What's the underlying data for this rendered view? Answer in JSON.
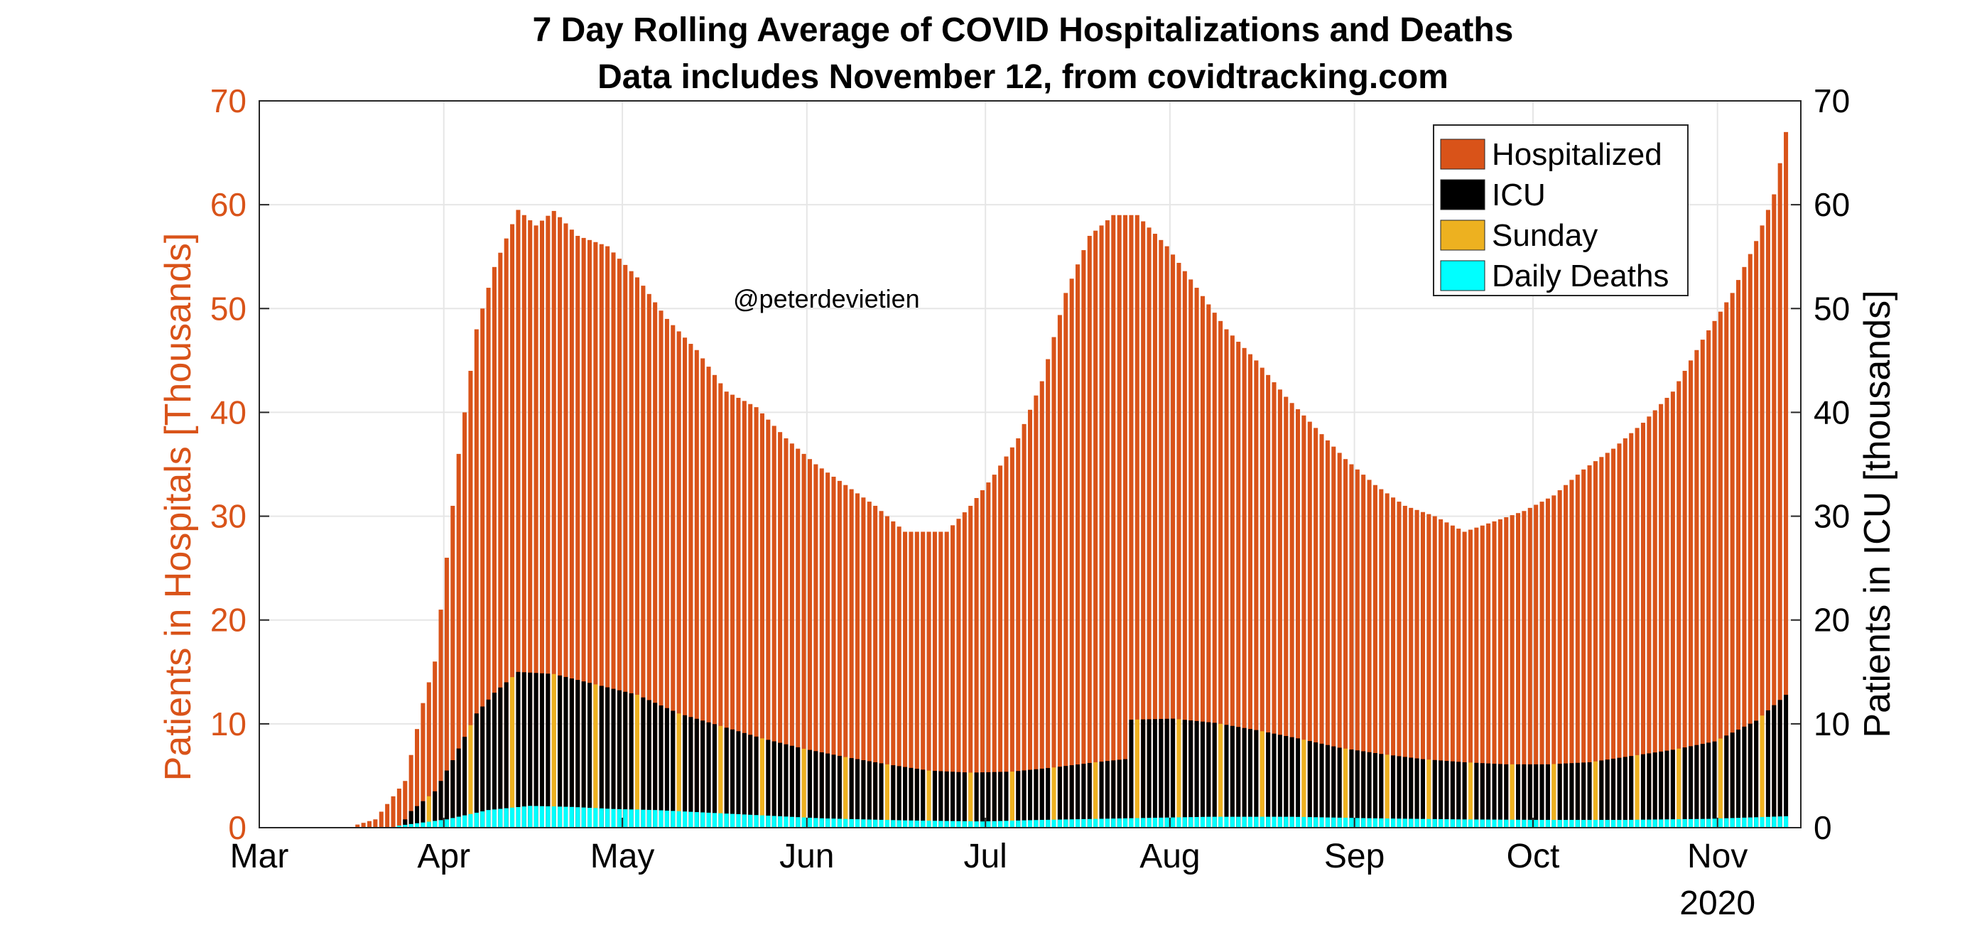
{
  "colors": {
    "hospitalized": "#D95319",
    "icu": "#000000",
    "sunday": "#EDB120",
    "deaths": "#00FFFF",
    "left_axis": "#D95319",
    "grid": "#e6e6e6"
  },
  "watermark": "@peterdevietien",
  "chart_data": {
    "type": "bar",
    "title": "7 Day Rolling Average of COVID Hospitalizations and Deaths",
    "subtitle": "Data includes November 12, from covidtracking.com",
    "ylabel": "Patients in Hospitals [Thousands]",
    "ylabel_right": "Patients in ICU [thousands]",
    "ylim": [
      0,
      70
    ],
    "ylim_right": [
      0,
      70
    ],
    "yticks": [
      "0",
      "10",
      "20",
      "30",
      "40",
      "50",
      "60",
      "70"
    ],
    "yticks_right": [
      "0",
      "10",
      "20",
      "30",
      "40",
      "50",
      "60",
      "70"
    ],
    "x_start": "2020-03-01",
    "x_end": "2020-11-15",
    "xticks": [
      {
        "date": "2020-03-01",
        "label": "Mar"
      },
      {
        "date": "2020-04-01",
        "label": "Apr"
      },
      {
        "date": "2020-05-01",
        "label": "May"
      },
      {
        "date": "2020-06-01",
        "label": "Jun"
      },
      {
        "date": "2020-07-01",
        "label": "Jul"
      },
      {
        "date": "2020-08-01",
        "label": "Aug"
      },
      {
        "date": "2020-09-01",
        "label": "Sep"
      },
      {
        "date": "2020-10-01",
        "label": "Oct"
      },
      {
        "date": "2020-11-01",
        "label": "Nov"
      }
    ],
    "year_label": "2020",
    "grid": true,
    "legend": {
      "position": "top-right",
      "entries": [
        "Hospitalized",
        "ICU",
        "Sunday",
        "Daily Deaths"
      ]
    },
    "series": [
      {
        "name": "Hospitalized",
        "keypoints": [
          [
            "2020-03-17",
            0.3
          ],
          [
            "2020-03-20",
            0.8
          ],
          [
            "2020-03-25",
            4.5
          ],
          [
            "2020-03-28",
            12
          ],
          [
            "2020-03-30",
            16
          ],
          [
            "2020-04-01",
            26
          ],
          [
            "2020-04-03",
            36
          ],
          [
            "2020-04-06",
            48
          ],
          [
            "2020-04-09",
            54
          ],
          [
            "2020-04-13",
            59.5
          ],
          [
            "2020-04-16",
            58
          ],
          [
            "2020-04-19",
            59.4
          ],
          [
            "2020-04-23",
            57
          ],
          [
            "2020-04-28",
            56
          ],
          [
            "2020-05-03",
            53
          ],
          [
            "2020-05-08",
            49
          ],
          [
            "2020-05-13",
            46
          ],
          [
            "2020-05-18",
            42
          ],
          [
            "2020-05-23",
            40.5
          ],
          [
            "2020-05-28",
            37.5
          ],
          [
            "2020-06-02",
            35
          ],
          [
            "2020-06-07",
            33
          ],
          [
            "2020-06-12",
            31
          ],
          [
            "2020-06-17",
            28.5
          ],
          [
            "2020-06-24",
            28.5
          ],
          [
            "2020-06-28",
            31
          ],
          [
            "2020-07-02",
            34
          ],
          [
            "2020-07-06",
            37.5
          ],
          [
            "2020-07-10",
            43
          ],
          [
            "2020-07-14",
            51.5
          ],
          [
            "2020-07-18",
            57
          ],
          [
            "2020-07-22",
            59
          ],
          [
            "2020-07-26",
            59
          ],
          [
            "2020-07-31",
            56
          ],
          [
            "2020-08-05",
            52
          ],
          [
            "2020-08-10",
            48
          ],
          [
            "2020-08-15",
            45
          ],
          [
            "2020-08-20",
            41.5
          ],
          [
            "2020-08-25",
            38.5
          ],
          [
            "2020-08-30",
            35.5
          ],
          [
            "2020-09-04",
            33
          ],
          [
            "2020-09-09",
            31
          ],
          [
            "2020-09-14",
            30
          ],
          [
            "2020-09-19",
            28.5
          ],
          [
            "2020-09-24",
            29.5
          ],
          [
            "2020-09-29",
            30.5
          ],
          [
            "2020-10-04",
            32
          ],
          [
            "2020-10-09",
            34.5
          ],
          [
            "2020-10-14",
            36.5
          ],
          [
            "2020-10-19",
            39
          ],
          [
            "2020-10-24",
            42
          ],
          [
            "2020-10-29",
            47
          ],
          [
            "2020-11-03",
            51.5
          ],
          [
            "2020-11-07",
            56.5
          ],
          [
            "2020-11-10",
            61
          ],
          [
            "2020-11-12",
            67
          ]
        ]
      },
      {
        "name": "ICU",
        "keypoints": [
          [
            "2020-03-24",
            0
          ],
          [
            "2020-03-26",
            1.6
          ],
          [
            "2020-03-30",
            3.5
          ],
          [
            "2020-04-02",
            6.5
          ],
          [
            "2020-04-06",
            11
          ],
          [
            "2020-04-09",
            13
          ],
          [
            "2020-04-13",
            15
          ],
          [
            "2020-04-19",
            14.8
          ],
          [
            "2020-04-26",
            13.8
          ],
          [
            "2020-05-03",
            12.8
          ],
          [
            "2020-05-10",
            11
          ],
          [
            "2020-05-17",
            9.8
          ],
          [
            "2020-05-24",
            8.6
          ],
          [
            "2020-05-31",
            7.6
          ],
          [
            "2020-06-07",
            6.8
          ],
          [
            "2020-06-14",
            6.1
          ],
          [
            "2020-06-21",
            5.5
          ],
          [
            "2020-06-28",
            5.3
          ],
          [
            "2020-07-05",
            5.4
          ],
          [
            "2020-07-12",
            5.8
          ],
          [
            "2020-07-19",
            6.3
          ],
          [
            "2020-07-24",
            6.6
          ],
          [
            "2020-07-25",
            10.4
          ],
          [
            "2020-08-01",
            10.5
          ],
          [
            "2020-08-08",
            10.1
          ],
          [
            "2020-08-15",
            9.4
          ],
          [
            "2020-08-22",
            8.6
          ],
          [
            "2020-08-29",
            7.7
          ],
          [
            "2020-09-05",
            7.1
          ],
          [
            "2020-09-12",
            6.6
          ],
          [
            "2020-09-19",
            6.3
          ],
          [
            "2020-09-26",
            6.1
          ],
          [
            "2020-10-03",
            6.1
          ],
          [
            "2020-10-10",
            6.3
          ],
          [
            "2020-10-17",
            6.9
          ],
          [
            "2020-10-24",
            7.5
          ],
          [
            "2020-10-31",
            8.3
          ],
          [
            "2020-11-07",
            10.3
          ],
          [
            "2020-11-12",
            12.8
          ]
        ]
      },
      {
        "name": "Daily Deaths",
        "keypoints": [
          [
            "2020-03-24",
            0.2
          ],
          [
            "2020-04-01",
            0.8
          ],
          [
            "2020-04-08",
            1.7
          ],
          [
            "2020-04-15",
            2.1
          ],
          [
            "2020-04-22",
            2.0
          ],
          [
            "2020-04-29",
            1.8
          ],
          [
            "2020-05-06",
            1.7
          ],
          [
            "2020-05-13",
            1.5
          ],
          [
            "2020-05-20",
            1.3
          ],
          [
            "2020-05-27",
            1.1
          ],
          [
            "2020-06-03",
            0.9
          ],
          [
            "2020-06-17",
            0.7
          ],
          [
            "2020-06-30",
            0.6
          ],
          [
            "2020-07-10",
            0.75
          ],
          [
            "2020-07-24",
            0.9
          ],
          [
            "2020-08-07",
            1.05
          ],
          [
            "2020-08-21",
            1.05
          ],
          [
            "2020-09-04",
            0.9
          ],
          [
            "2020-09-18",
            0.8
          ],
          [
            "2020-10-02",
            0.75
          ],
          [
            "2020-10-16",
            0.75
          ],
          [
            "2020-10-30",
            0.85
          ],
          [
            "2020-11-12",
            1.1
          ]
        ]
      }
    ]
  }
}
